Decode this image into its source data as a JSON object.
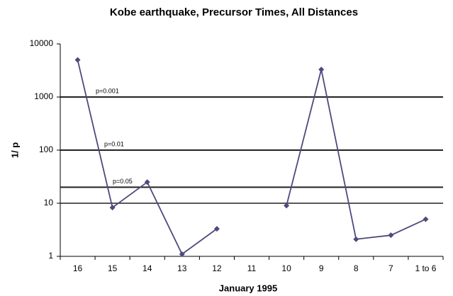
{
  "chart_data": {
    "type": "line",
    "title": "Kobe earthquake, Precursor Times, All Distances",
    "x_label": "January 1995",
    "y_label": "1/ p",
    "categories": [
      "16",
      "15",
      "14",
      "13",
      "12",
      "11",
      "10",
      "9",
      "8",
      "7",
      "1 to 6"
    ],
    "values": [
      5000,
      8.3,
      25,
      1.1,
      3.3,
      null,
      9,
      3300,
      2.1,
      2.5,
      5
    ],
    "color": "#4d4a7c",
    "log_scale": true,
    "ylim": [
      1,
      10000
    ],
    "yticks": [
      1,
      10,
      100,
      1000,
      10000
    ],
    "grid": true,
    "reference_lines": [
      {
        "value": 1000,
        "label": "p=0.001"
      },
      {
        "value": 100,
        "label": "p=0.01"
      },
      {
        "value": 20,
        "label": "p=0.05"
      }
    ]
  }
}
